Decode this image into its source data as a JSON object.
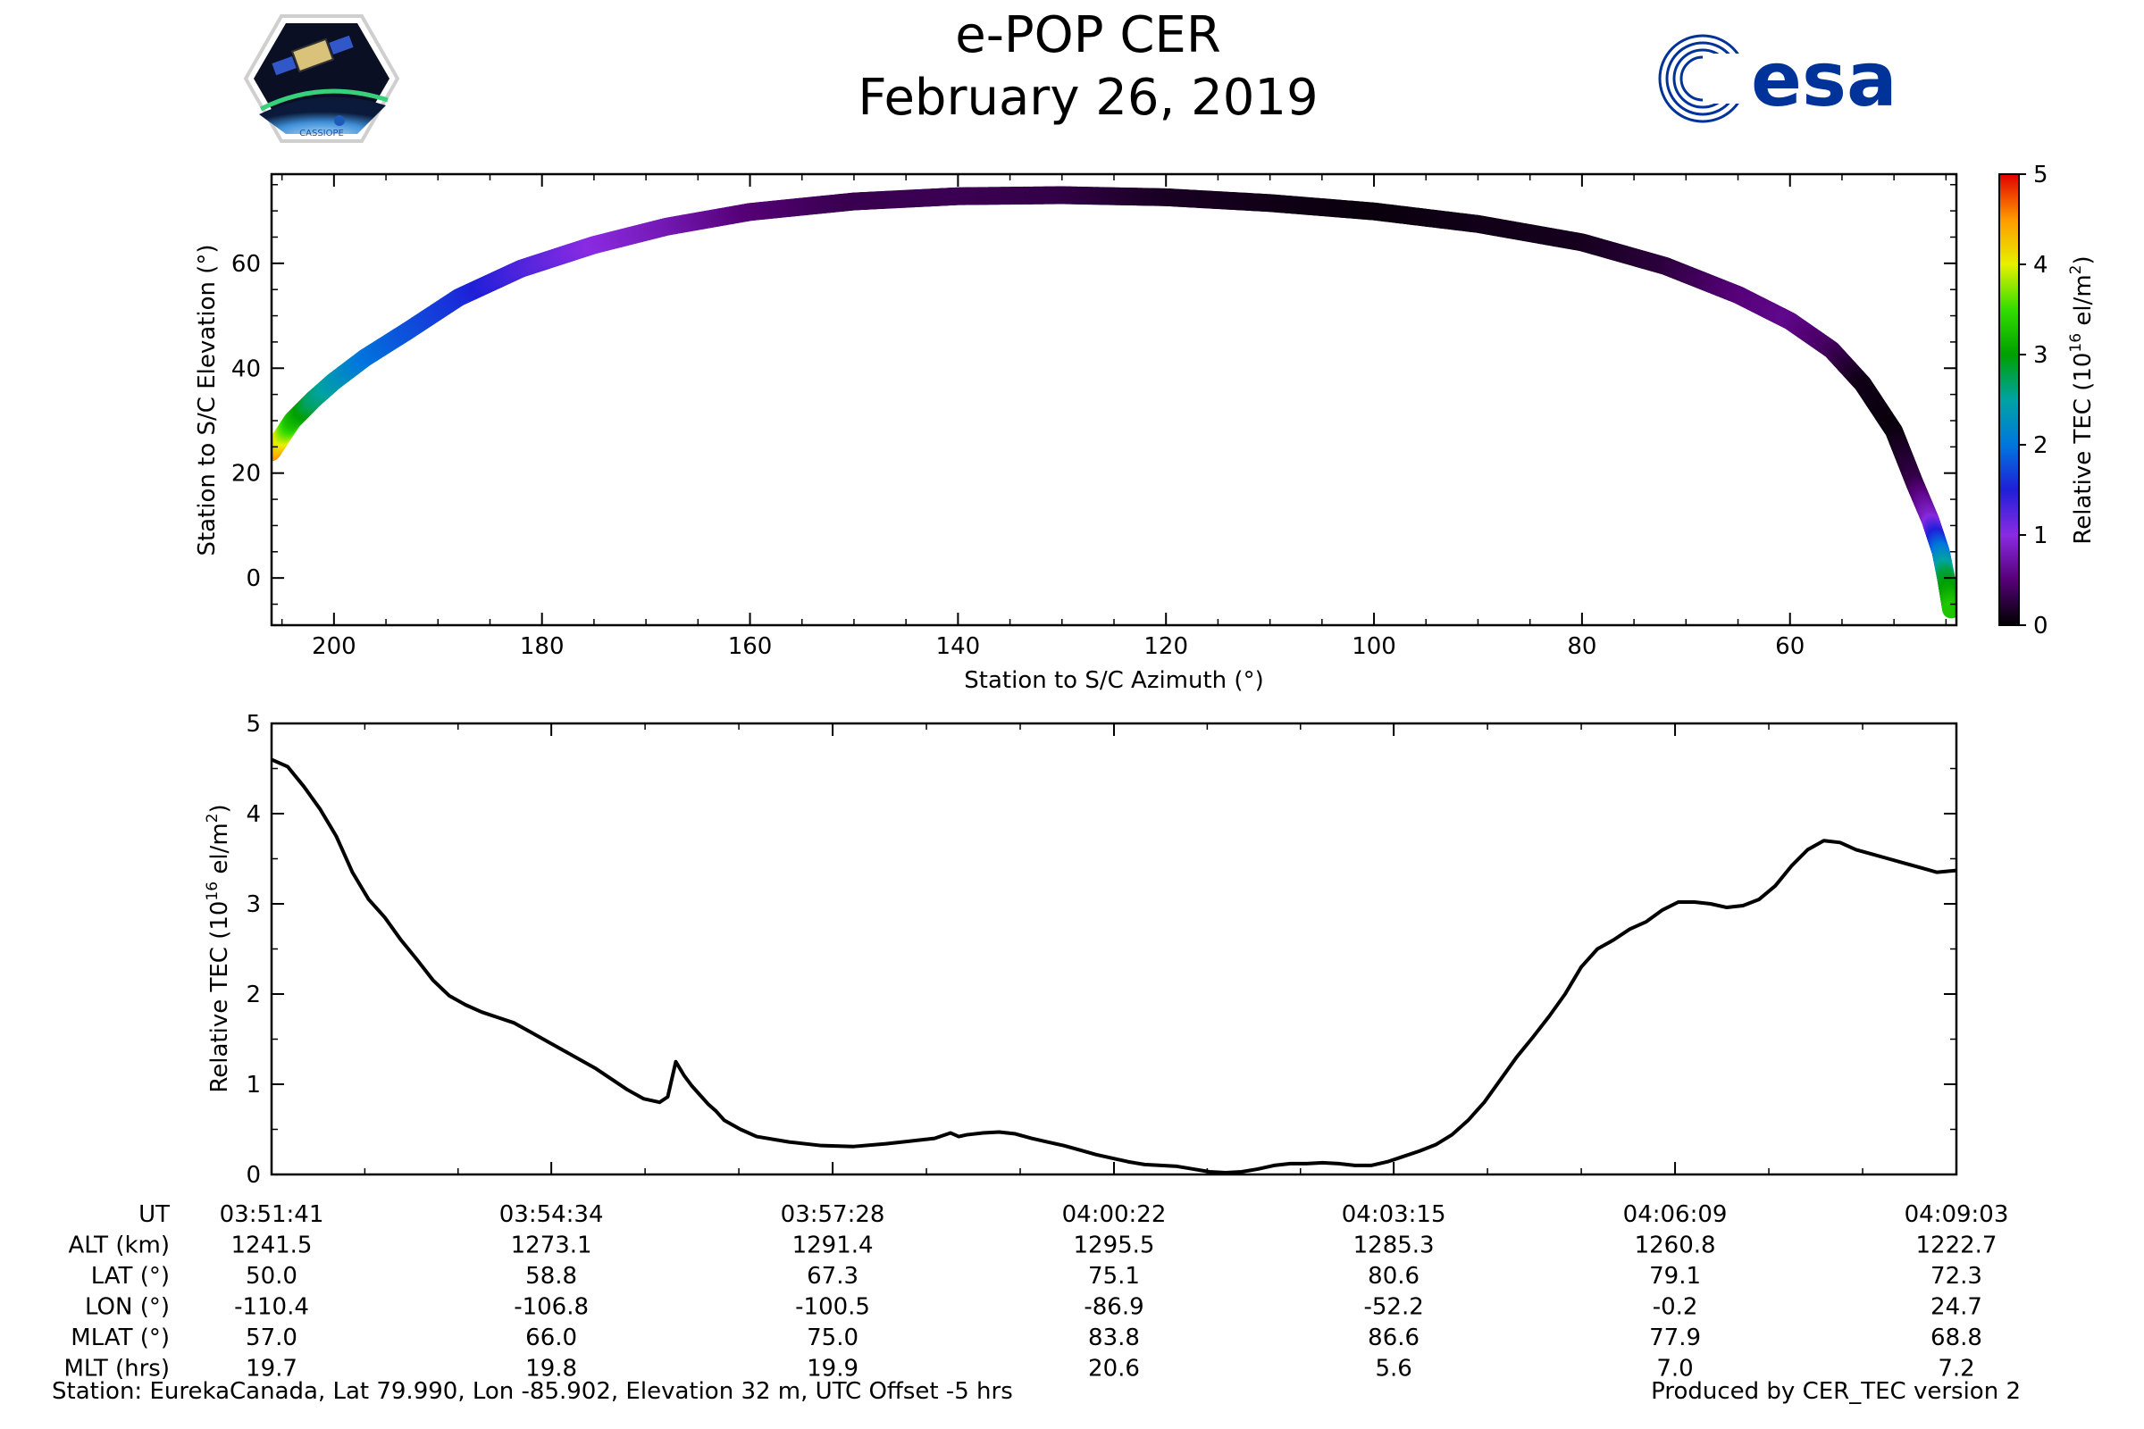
{
  "title": "e-POP CER",
  "date": "February 26, 2019",
  "logos": {
    "left": {
      "name": "cassiope-mission-logo",
      "text": "CASSIOPE"
    },
    "right": {
      "name": "esa-logo",
      "text": "esa",
      "color": "#003399"
    }
  },
  "chart_data": [
    {
      "type": "scatter",
      "title": "",
      "xlabel": "Station to S/C Azimuth (°)",
      "ylabel": "Station to S/C Elevation (°)",
      "xlim": [
        206,
        44
      ],
      "ylim": [
        -9,
        77
      ],
      "xticks": [
        200,
        180,
        160,
        140,
        120,
        100,
        80,
        60
      ],
      "yticks": [
        0,
        20,
        40,
        60
      ],
      "color_by": "relative_tec",
      "points": [
        {
          "az": 206.0,
          "el": 24.0,
          "tec": 4.55
        },
        {
          "az": 205.0,
          "el": 27.0,
          "tec": 4.0
        },
        {
          "az": 204.0,
          "el": 30.0,
          "tec": 3.3
        },
        {
          "az": 203.0,
          "el": 32.0,
          "tec": 3.0
        },
        {
          "az": 202.0,
          "el": 34.0,
          "tec": 2.7
        },
        {
          "az": 200.0,
          "el": 37.5,
          "tec": 2.4
        },
        {
          "az": 197.0,
          "el": 42.0,
          "tec": 2.0
        },
        {
          "az": 193.0,
          "el": 47.0,
          "tec": 1.8
        },
        {
          "az": 188.0,
          "el": 53.5,
          "tec": 1.6
        },
        {
          "az": 182.0,
          "el": 59.0,
          "tec": 1.3
        },
        {
          "az": 175.0,
          "el": 63.5,
          "tec": 1.0
        },
        {
          "az": 168.0,
          "el": 67.0,
          "tec": 0.8
        },
        {
          "az": 160.0,
          "el": 69.8,
          "tec": 0.5
        },
        {
          "az": 150.0,
          "el": 71.8,
          "tec": 0.33
        },
        {
          "az": 140.0,
          "el": 72.8,
          "tec": 0.35
        },
        {
          "az": 130.0,
          "el": 73.0,
          "tec": 0.3
        },
        {
          "az": 120.0,
          "el": 72.6,
          "tec": 0.15
        },
        {
          "az": 110.0,
          "el": 71.5,
          "tec": 0.1
        },
        {
          "az": 100.0,
          "el": 69.9,
          "tec": 0.05
        },
        {
          "az": 90.0,
          "el": 67.5,
          "tec": 0.1
        },
        {
          "az": 80.0,
          "el": 64.0,
          "tec": 0.12
        },
        {
          "az": 72.0,
          "el": 59.5,
          "tec": 0.25
        },
        {
          "az": 65.0,
          "el": 54.0,
          "tec": 0.5
        },
        {
          "az": 60.0,
          "el": 49.0,
          "tec": 0.6
        },
        {
          "az": 56.0,
          "el": 43.5,
          "tec": 0.4
        },
        {
          "az": 53.0,
          "el": 37.0,
          "tec": 0.1
        },
        {
          "az": 50.0,
          "el": 28.0,
          "tec": 0.05
        },
        {
          "az": 48.0,
          "el": 18.0,
          "tec": 0.3
        },
        {
          "az": 46.5,
          "el": 11.0,
          "tec": 0.9
        },
        {
          "az": 45.5,
          "el": 5.0,
          "tec": 2.0
        },
        {
          "az": 45.0,
          "el": 0.0,
          "tec": 2.8
        },
        {
          "az": 44.5,
          "el": -6.0,
          "tec": 3.3
        }
      ],
      "colorbar": {
        "label": "Relative TEC (10^16 el/m^2)",
        "label_main": "Relative TEC (10",
        "label_exp1": "16",
        "label_mid": " el/m",
        "label_exp2": "2",
        "label_end": ")",
        "range": [
          0,
          5
        ],
        "ticks": [
          0,
          1,
          2,
          3,
          4,
          5
        ],
        "colormap": "nipy_spectral"
      }
    },
    {
      "type": "line",
      "title": "",
      "xlabel": "",
      "ylabel": "Relative TEC (10^16 el/m^2)",
      "ylabel_main": "Relative TEC (10",
      "ylabel_exp1": "16",
      "ylabel_mid": " el/m",
      "ylabel_exp2": "2",
      "ylabel_end": ")",
      "x_unit": "seconds after 03:51:41 UT",
      "xlim": [
        0,
        1042
      ],
      "ylim": [
        0,
        5
      ],
      "yticks": [
        0,
        1,
        2,
        3,
        4,
        5
      ],
      "series": [
        {
          "name": "Relative TEC",
          "color": "#000000",
          "x": [
            0,
            10,
            20,
            30,
            40,
            50,
            60,
            70,
            80,
            90,
            100,
            110,
            120,
            130,
            140,
            150,
            160,
            170,
            180,
            190,
            200,
            210,
            220,
            230,
            240,
            245,
            250,
            255,
            260,
            265,
            270,
            275,
            280,
            290,
            300,
            320,
            340,
            360,
            380,
            400,
            410,
            420,
            425,
            430,
            440,
            450,
            460,
            470,
            480,
            490,
            500,
            510,
            520,
            530,
            540,
            550,
            560,
            570,
            580,
            590,
            600,
            610,
            620,
            630,
            640,
            650,
            660,
            670,
            680,
            690,
            700,
            710,
            720,
            730,
            740,
            750,
            760,
            770,
            780,
            790,
            800,
            810,
            820,
            830,
            840,
            850,
            860,
            870,
            880,
            890,
            900,
            910,
            920,
            930,
            940,
            950,
            960,
            970,
            980,
            990,
            1000,
            1010,
            1020,
            1030,
            1042
          ],
          "y": [
            4.6,
            4.52,
            4.3,
            4.05,
            3.75,
            3.35,
            3.05,
            2.85,
            2.6,
            2.38,
            2.15,
            1.98,
            1.88,
            1.8,
            1.74,
            1.68,
            1.58,
            1.48,
            1.38,
            1.28,
            1.18,
            1.06,
            0.94,
            0.84,
            0.8,
            0.86,
            1.25,
            1.1,
            0.98,
            0.88,
            0.78,
            0.7,
            0.6,
            0.5,
            0.42,
            0.36,
            0.32,
            0.31,
            0.34,
            0.38,
            0.4,
            0.46,
            0.42,
            0.44,
            0.46,
            0.47,
            0.45,
            0.4,
            0.36,
            0.32,
            0.27,
            0.22,
            0.18,
            0.14,
            0.11,
            0.1,
            0.09,
            0.06,
            0.03,
            0.02,
            0.03,
            0.06,
            0.1,
            0.12,
            0.12,
            0.13,
            0.12,
            0.1,
            0.1,
            0.14,
            0.2,
            0.26,
            0.33,
            0.44,
            0.6,
            0.8,
            1.05,
            1.3,
            1.52,
            1.75,
            2.0,
            2.3,
            2.5,
            2.6,
            2.72,
            2.8,
            2.93,
            3.02,
            3.02,
            3.0,
            2.96,
            2.98,
            3.05,
            3.2,
            3.42,
            3.6,
            3.7,
            3.68,
            3.6,
            3.55,
            3.5,
            3.45,
            3.4,
            3.35,
            3.37
          ]
        }
      ],
      "time_axis": {
        "row_labels": [
          "UT",
          "ALT (km)",
          "LAT (°)",
          "LON (°)",
          "MLAT (°)",
          "MLT (hrs)"
        ],
        "columns": [
          {
            "sec": 0,
            "vals": [
              "03:51:41",
              "1241.5",
              "50.0",
              "-110.4",
              "57.0",
              "19.7"
            ]
          },
          {
            "sec": 173,
            "vals": [
              "03:54:34",
              "1273.1",
              "58.8",
              "-106.8",
              "66.0",
              "19.8"
            ]
          },
          {
            "sec": 347,
            "vals": [
              "03:57:28",
              "1291.4",
              "67.3",
              "-100.5",
              "75.0",
              "19.9"
            ]
          },
          {
            "sec": 521,
            "vals": [
              "04:00:22",
              "1295.5",
              "75.1",
              "-86.9",
              "83.8",
              "20.6"
            ]
          },
          {
            "sec": 694,
            "vals": [
              "04:03:15",
              "1285.3",
              "80.6",
              "-52.2",
              "86.6",
              "5.6"
            ]
          },
          {
            "sec": 868,
            "vals": [
              "04:06:09",
              "1260.8",
              "79.1",
              "-0.2",
              "77.9",
              "7.0"
            ]
          },
          {
            "sec": 1042,
            "vals": [
              "04:09:03",
              "1222.7",
              "72.3",
              "24.7",
              "68.8",
              "7.2"
            ]
          }
        ]
      }
    }
  ],
  "footer": {
    "station": "Station: EurekaCanada, Lat 79.990, Lon -85.902, Elevation 32 m, UTC Offset -5 hrs",
    "producer": "Produced by CER_TEC version 2"
  }
}
